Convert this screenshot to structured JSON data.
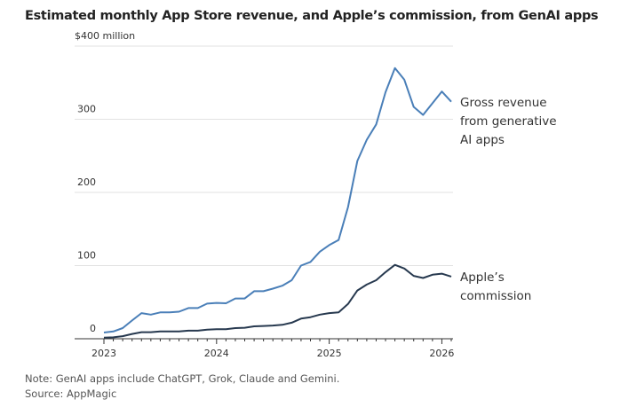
{
  "chart_data": {
    "type": "line",
    "title": "Estimated monthly App Store revenue, and Apple’s commission, from GenAI apps",
    "ylabel": "$400 million",
    "ylim": [
      0,
      400
    ],
    "yticks": [
      0,
      100,
      200,
      300,
      400
    ],
    "ytick_labels": [
      "0",
      "100",
      "200",
      "300",
      "$400 million"
    ],
    "xticks": [
      "2023",
      "2024",
      "2025",
      "2026"
    ],
    "x_start": "2023-01",
    "x_end": "2026-02",
    "grid": true,
    "x": [
      "2023-01",
      "2023-02",
      "2023-03",
      "2023-04",
      "2023-05",
      "2023-06",
      "2023-07",
      "2023-08",
      "2023-09",
      "2023-10",
      "2023-11",
      "2023-12",
      "2024-01",
      "2024-02",
      "2024-03",
      "2024-04",
      "2024-05",
      "2024-06",
      "2024-07",
      "2024-08",
      "2024-09",
      "2024-10",
      "2024-11",
      "2024-12",
      "2025-01",
      "2025-02",
      "2025-03",
      "2025-04",
      "2025-05",
      "2025-06",
      "2025-07",
      "2025-08",
      "2025-09",
      "2025-10",
      "2025-11",
      "2025-12",
      "2026-01",
      "2026-02"
    ],
    "series": [
      {
        "name": "Gross revenue from generative AI apps",
        "label_lines": [
          "Gross revenue",
          "from generative",
          "AI apps"
        ],
        "color": "#4a7fb8",
        "values": [
          8.5,
          10,
          14.5,
          25,
          35,
          33,
          36,
          36,
          37,
          42,
          42,
          48,
          49,
          48.5,
          55,
          55,
          65,
          65,
          68.5,
          72.5,
          80,
          100,
          105,
          119,
          128,
          135,
          180,
          243,
          272,
          293,
          337,
          370,
          354,
          317,
          306,
          322,
          338,
          324
        ]
      },
      {
        "name": "Apple’s commission",
        "label_lines": [
          "Apple’s",
          "commission"
        ],
        "color": "#27394f",
        "values": [
          1.5,
          2,
          3.5,
          6.5,
          9,
          9,
          10,
          10,
          10,
          11,
          11,
          12.5,
          13,
          13,
          14.5,
          15,
          17,
          17.5,
          18,
          19,
          22,
          27.5,
          29.5,
          33,
          35,
          36,
          47.5,
          66,
          74,
          80,
          91,
          101,
          96,
          86,
          83,
          87.5,
          89,
          85
        ]
      }
    ]
  },
  "notes": {
    "note": "Note: GenAI apps include ChatGPT, Grok, Claude and Gemini.",
    "source": "Source: AppMagic"
  }
}
